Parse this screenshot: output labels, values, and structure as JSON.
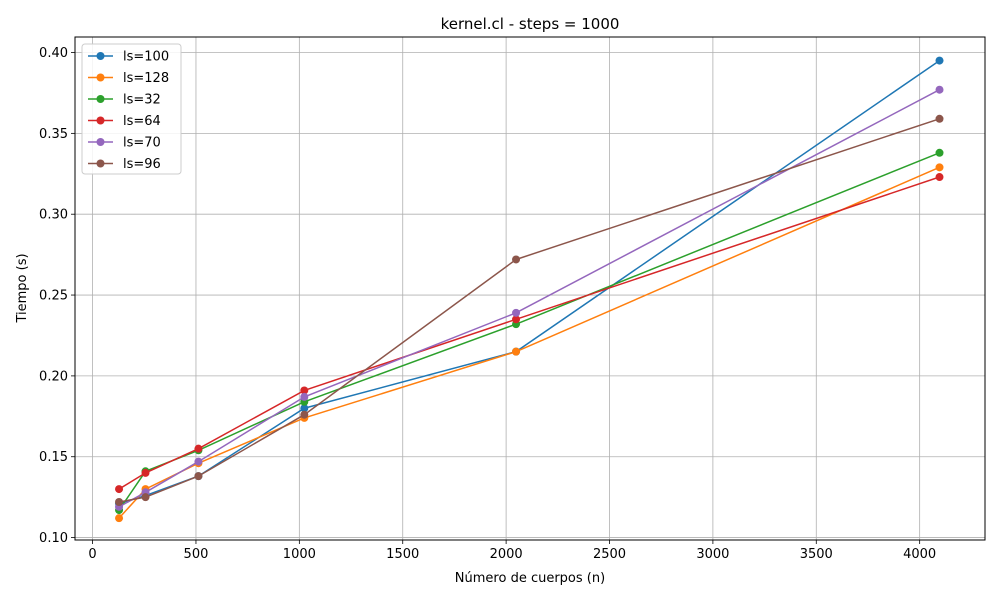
{
  "chart_data": {
    "type": "line",
    "title": "kernel.cl - steps = 1000",
    "xlabel": "Número de cuerpos (n)",
    "ylabel": "Tiempo (s)",
    "xlim": [
      -85,
      4316
    ],
    "ylim": [
      0.0985,
      0.4096
    ],
    "xticks": [
      0,
      500,
      1000,
      1500,
      2000,
      2500,
      3000,
      3500,
      4000
    ],
    "yticks": [
      0.1,
      0.15,
      0.2,
      0.25,
      0.3,
      0.35,
      0.4
    ],
    "ytick_labels": [
      "0.10",
      "0.15",
      "0.20",
      "0.25",
      "0.30",
      "0.35",
      "0.40"
    ],
    "grid": true,
    "legend_position": "upper-left",
    "x": [
      128,
      256,
      512,
      1024,
      2048,
      4096
    ],
    "series": [
      {
        "name": "ls=100",
        "color": "#1f77b4",
        "values": [
          0.121,
          0.126,
          0.138,
          0.18,
          0.215,
          0.395
        ]
      },
      {
        "name": "ls=128",
        "color": "#ff7f0e",
        "values": [
          0.112,
          0.13,
          0.146,
          0.174,
          0.215,
          0.329
        ]
      },
      {
        "name": "ls=32",
        "color": "#2ca02c",
        "values": [
          0.117,
          0.141,
          0.154,
          0.184,
          0.232,
          0.338
        ]
      },
      {
        "name": "ls=64",
        "color": "#d62728",
        "values": [
          0.13,
          0.14,
          0.155,
          0.191,
          0.235,
          0.323
        ]
      },
      {
        "name": "ls=70",
        "color": "#9467bd",
        "values": [
          0.119,
          0.128,
          0.147,
          0.187,
          0.239,
          0.377
        ]
      },
      {
        "name": "ls=96",
        "color": "#8c564b",
        "values": [
          0.122,
          0.125,
          0.138,
          0.176,
          0.272,
          0.359
        ]
      }
    ]
  }
}
